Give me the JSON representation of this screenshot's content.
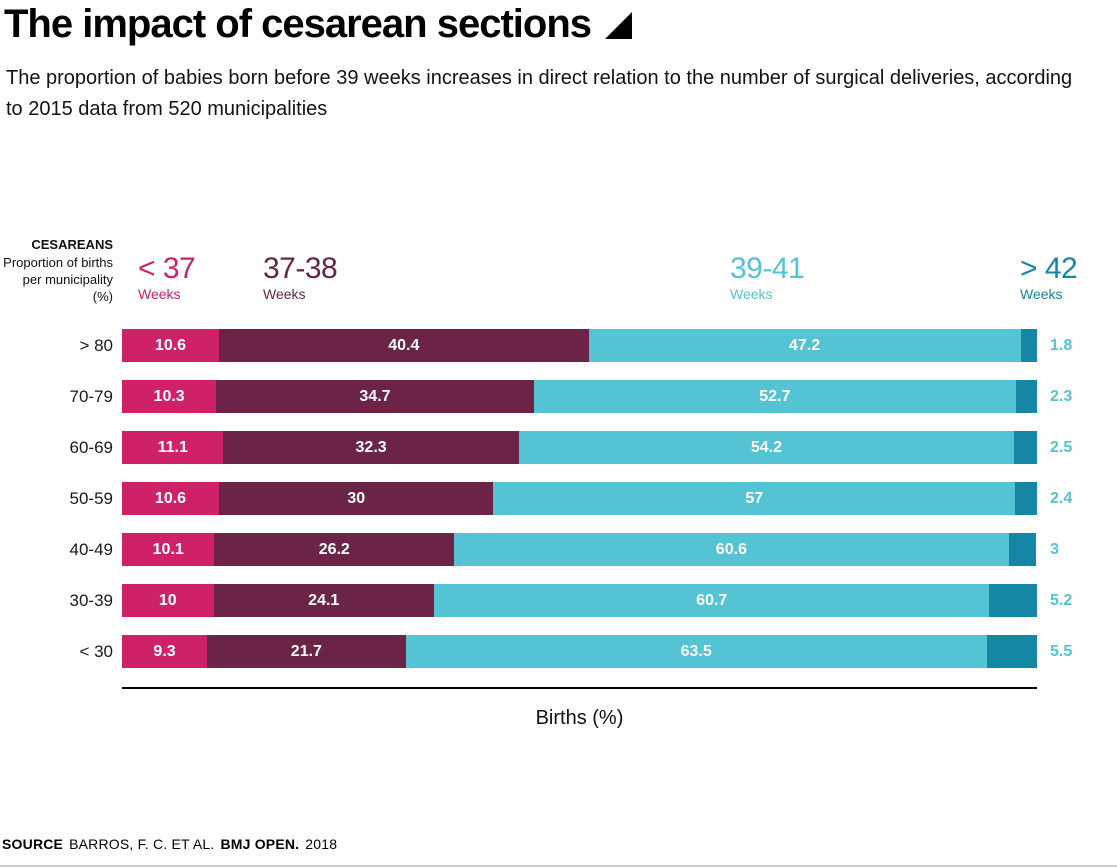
{
  "header": {
    "title": "The impact of cesarean sections",
    "subtitle": "The proportion of babies born before 39 weeks increases in direct relation to the number of surgical deliveries, according to 2015 data from 520 municipalities"
  },
  "axis": {
    "left_title": "CESAREANS",
    "left_subtitle": "Proportion of births per municipality (%)",
    "x_label": "Births (%)"
  },
  "legend": [
    {
      "range": "< 37",
      "unit": "Weeks",
      "color": "#ce2168"
    },
    {
      "range": "37-38",
      "unit": "Weeks",
      "color": "#6b2348"
    },
    {
      "range": "39-41",
      "unit": "Weeks",
      "color": "#54c3d4"
    },
    {
      "range": "> 42",
      "unit": "Weeks",
      "color": "#1587a4"
    }
  ],
  "chart_data": {
    "type": "bar",
    "orientation": "horizontal",
    "stacked": true,
    "title": "The impact of cesarean sections",
    "categories": [
      "> 80",
      "70-79",
      "60-69",
      "50-59",
      "40-49",
      "30-39",
      "< 30"
    ],
    "series": [
      {
        "name": "< 37 Weeks",
        "color": "#ce2168",
        "values": [
          10.6,
          10.3,
          11.1,
          10.6,
          10.1,
          10,
          9.3
        ]
      },
      {
        "name": "37-38 Weeks",
        "color": "#6b2348",
        "values": [
          40.4,
          34.7,
          32.3,
          30,
          26.2,
          24.1,
          21.7
        ]
      },
      {
        "name": "39-41 Weeks",
        "color": "#54c3d4",
        "values": [
          47.2,
          52.7,
          54.2,
          57,
          60.6,
          60.7,
          63.5
        ]
      },
      {
        "name": "> 42 Weeks",
        "color": "#1587a4",
        "values": [
          1.8,
          2.3,
          2.5,
          2.4,
          3,
          5.2,
          5.5
        ]
      }
    ],
    "xlabel": "Births (%)",
    "xlim": [
      0,
      100
    ],
    "value_labels": true,
    "outside_label_color": "#54c3d4",
    "inside_label_color": "#ffffff"
  },
  "source": {
    "label": "SOURCE",
    "authors": "BARROS, F. C. ET AL.",
    "journal": "BMJ OPEN.",
    "year": "2018"
  }
}
